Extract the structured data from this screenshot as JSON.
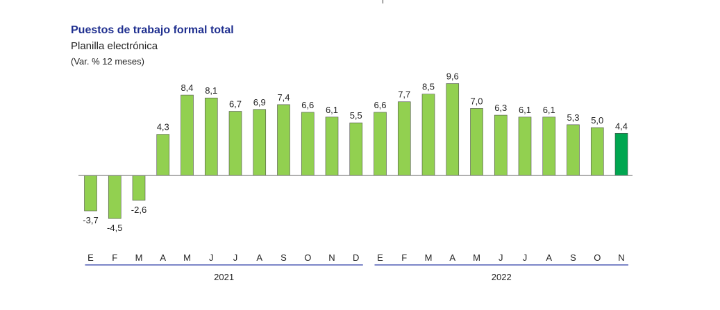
{
  "title": "Puestos de trabajo formal total",
  "subtitle": "Planilla electrónica",
  "unit_note": "(Var. % 12 meses)",
  "colors": {
    "bar": "#92d050",
    "bar_last": "#00a650",
    "bar_stroke": "#4d4d4d",
    "axis": "#808080",
    "year_line": "#2e3fa8",
    "text": "#222222"
  },
  "chart_data": {
    "type": "bar",
    "title": "Puestos de trabajo formal total",
    "subtitle": "Planilla electrónica",
    "ylabel": "(Var. % 12 meses)",
    "categories": [
      "E",
      "F",
      "M",
      "A",
      "M",
      "J",
      "J",
      "A",
      "S",
      "O",
      "N",
      "D",
      "E",
      "F",
      "M",
      "A",
      "M",
      "J",
      "J",
      "A",
      "S",
      "O",
      "N"
    ],
    "values": [
      -3.7,
      -4.5,
      -2.6,
      4.3,
      8.4,
      8.1,
      6.7,
      6.9,
      7.4,
      6.6,
      6.1,
      5.5,
      6.6,
      7.7,
      8.5,
      9.6,
      7.0,
      6.3,
      6.1,
      6.1,
      5.3,
      5.0,
      4.4
    ],
    "value_labels": [
      "-3,7",
      "-4,5",
      "-2,6",
      "4,3",
      "8,4",
      "8,1",
      "6,7",
      "6,9",
      "7,4",
      "6,6",
      "6,1",
      "5,5",
      "6,6",
      "7,7",
      "8,5",
      "9,6",
      "7,0",
      "6,3",
      "6,1",
      "6,1",
      "5,3",
      "5,0",
      "4,4"
    ],
    "groups": [
      {
        "label": "2021",
        "start": 0,
        "end": 11
      },
      {
        "label": "2022",
        "start": 12,
        "end": 22
      }
    ],
    "highlight_last": true,
    "legend": "none",
    "grid": false
  }
}
